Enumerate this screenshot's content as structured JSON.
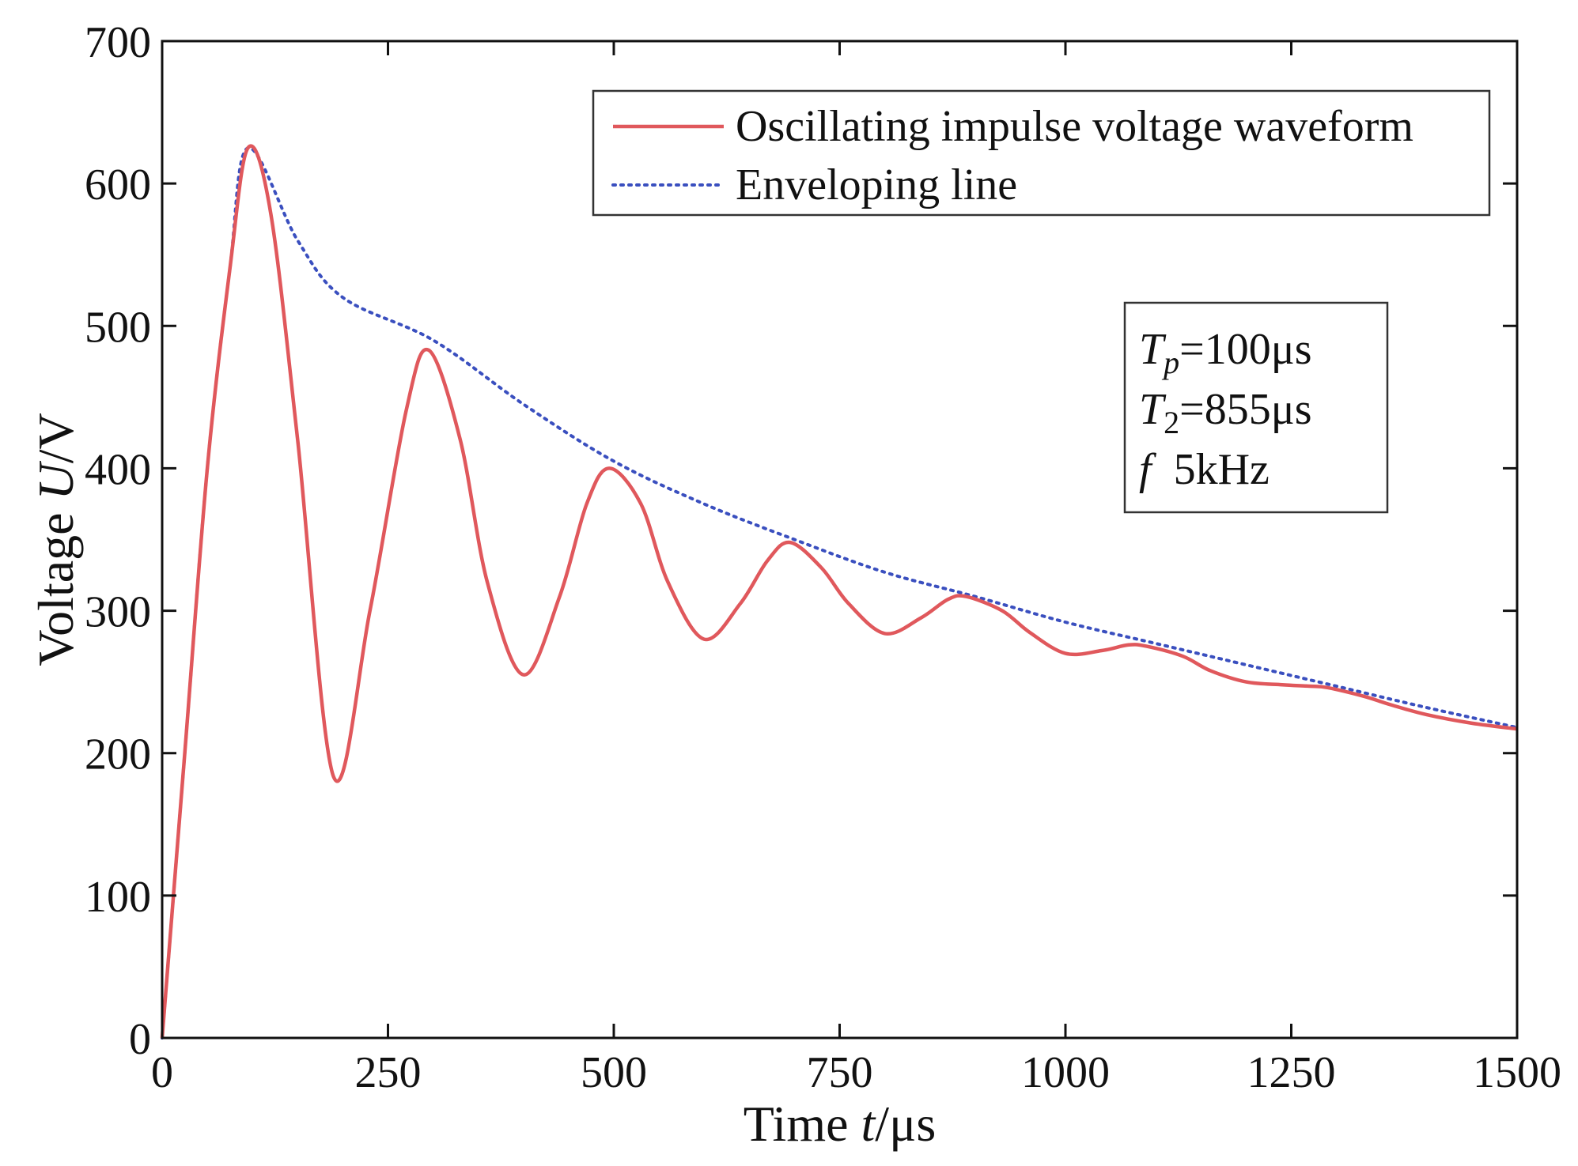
{
  "chart_data": {
    "type": "line",
    "title": "",
    "xlabel": "Time t/μs",
    "xlabel_parts": {
      "prefix": "Time ",
      "var": "t",
      "suffix": "/μs"
    },
    "ylabel": "Voltage U/V",
    "ylabel_parts": {
      "prefix": "Voltage ",
      "var": "U",
      "suffix": "/V"
    },
    "xlim": [
      0,
      1500
    ],
    "ylim": [
      0,
      700
    ],
    "x_ticks": [
      0,
      250,
      500,
      750,
      1000,
      1250,
      1500
    ],
    "y_ticks": [
      0,
      100,
      200,
      300,
      400,
      500,
      600,
      700
    ],
    "grid": false,
    "legend_position": "top-right",
    "series": [
      {
        "name": "Oscillating impulse voltage waveform",
        "color": "#e0585c",
        "style": "solid",
        "x": [
          0,
          25,
          50,
          75,
          95,
          120,
          150,
          190,
          230,
          270,
          295,
          330,
          360,
          400,
          440,
          470,
          495,
          530,
          560,
          600,
          640,
          670,
          695,
          730,
          760,
          800,
          840,
          870,
          890,
          930,
          960,
          1000,
          1040,
          1070,
          1090,
          1130,
          1160,
          1200,
          1240,
          1270,
          1290,
          1330,
          1360,
          1400,
          1450,
          1500
        ],
        "y": [
          0,
          200,
          400,
          540,
          625,
          580,
          420,
          183,
          300,
          440,
          483,
          420,
          320,
          255,
          310,
          375,
          400,
          375,
          320,
          280,
          305,
          335,
          348,
          330,
          305,
          284,
          295,
          308,
          310,
          300,
          285,
          270,
          272,
          276,
          275,
          268,
          258,
          250,
          248,
          247,
          246,
          240,
          234,
          227,
          221,
          217
        ]
      },
      {
        "name": "Enveloping line",
        "color": "#3a4fbf",
        "style": "dotted",
        "x": [
          0,
          25,
          50,
          75,
          95,
          150,
          200,
          300,
          400,
          500,
          600,
          700,
          800,
          900,
          1000,
          1100,
          1200,
          1300,
          1400,
          1500
        ],
        "y": [
          0,
          200,
          400,
          540,
          625,
          560,
          520,
          490,
          445,
          405,
          375,
          350,
          327,
          310,
          292,
          277,
          262,
          247,
          232,
          218
        ]
      }
    ],
    "annotations": [
      {
        "var": "T",
        "sub": "p",
        "text": "=100μs"
      },
      {
        "var": "T",
        "sub": "2",
        "text": "=855μs"
      },
      {
        "var": "f",
        "sub": "",
        "text": "  5kHz"
      }
    ]
  }
}
